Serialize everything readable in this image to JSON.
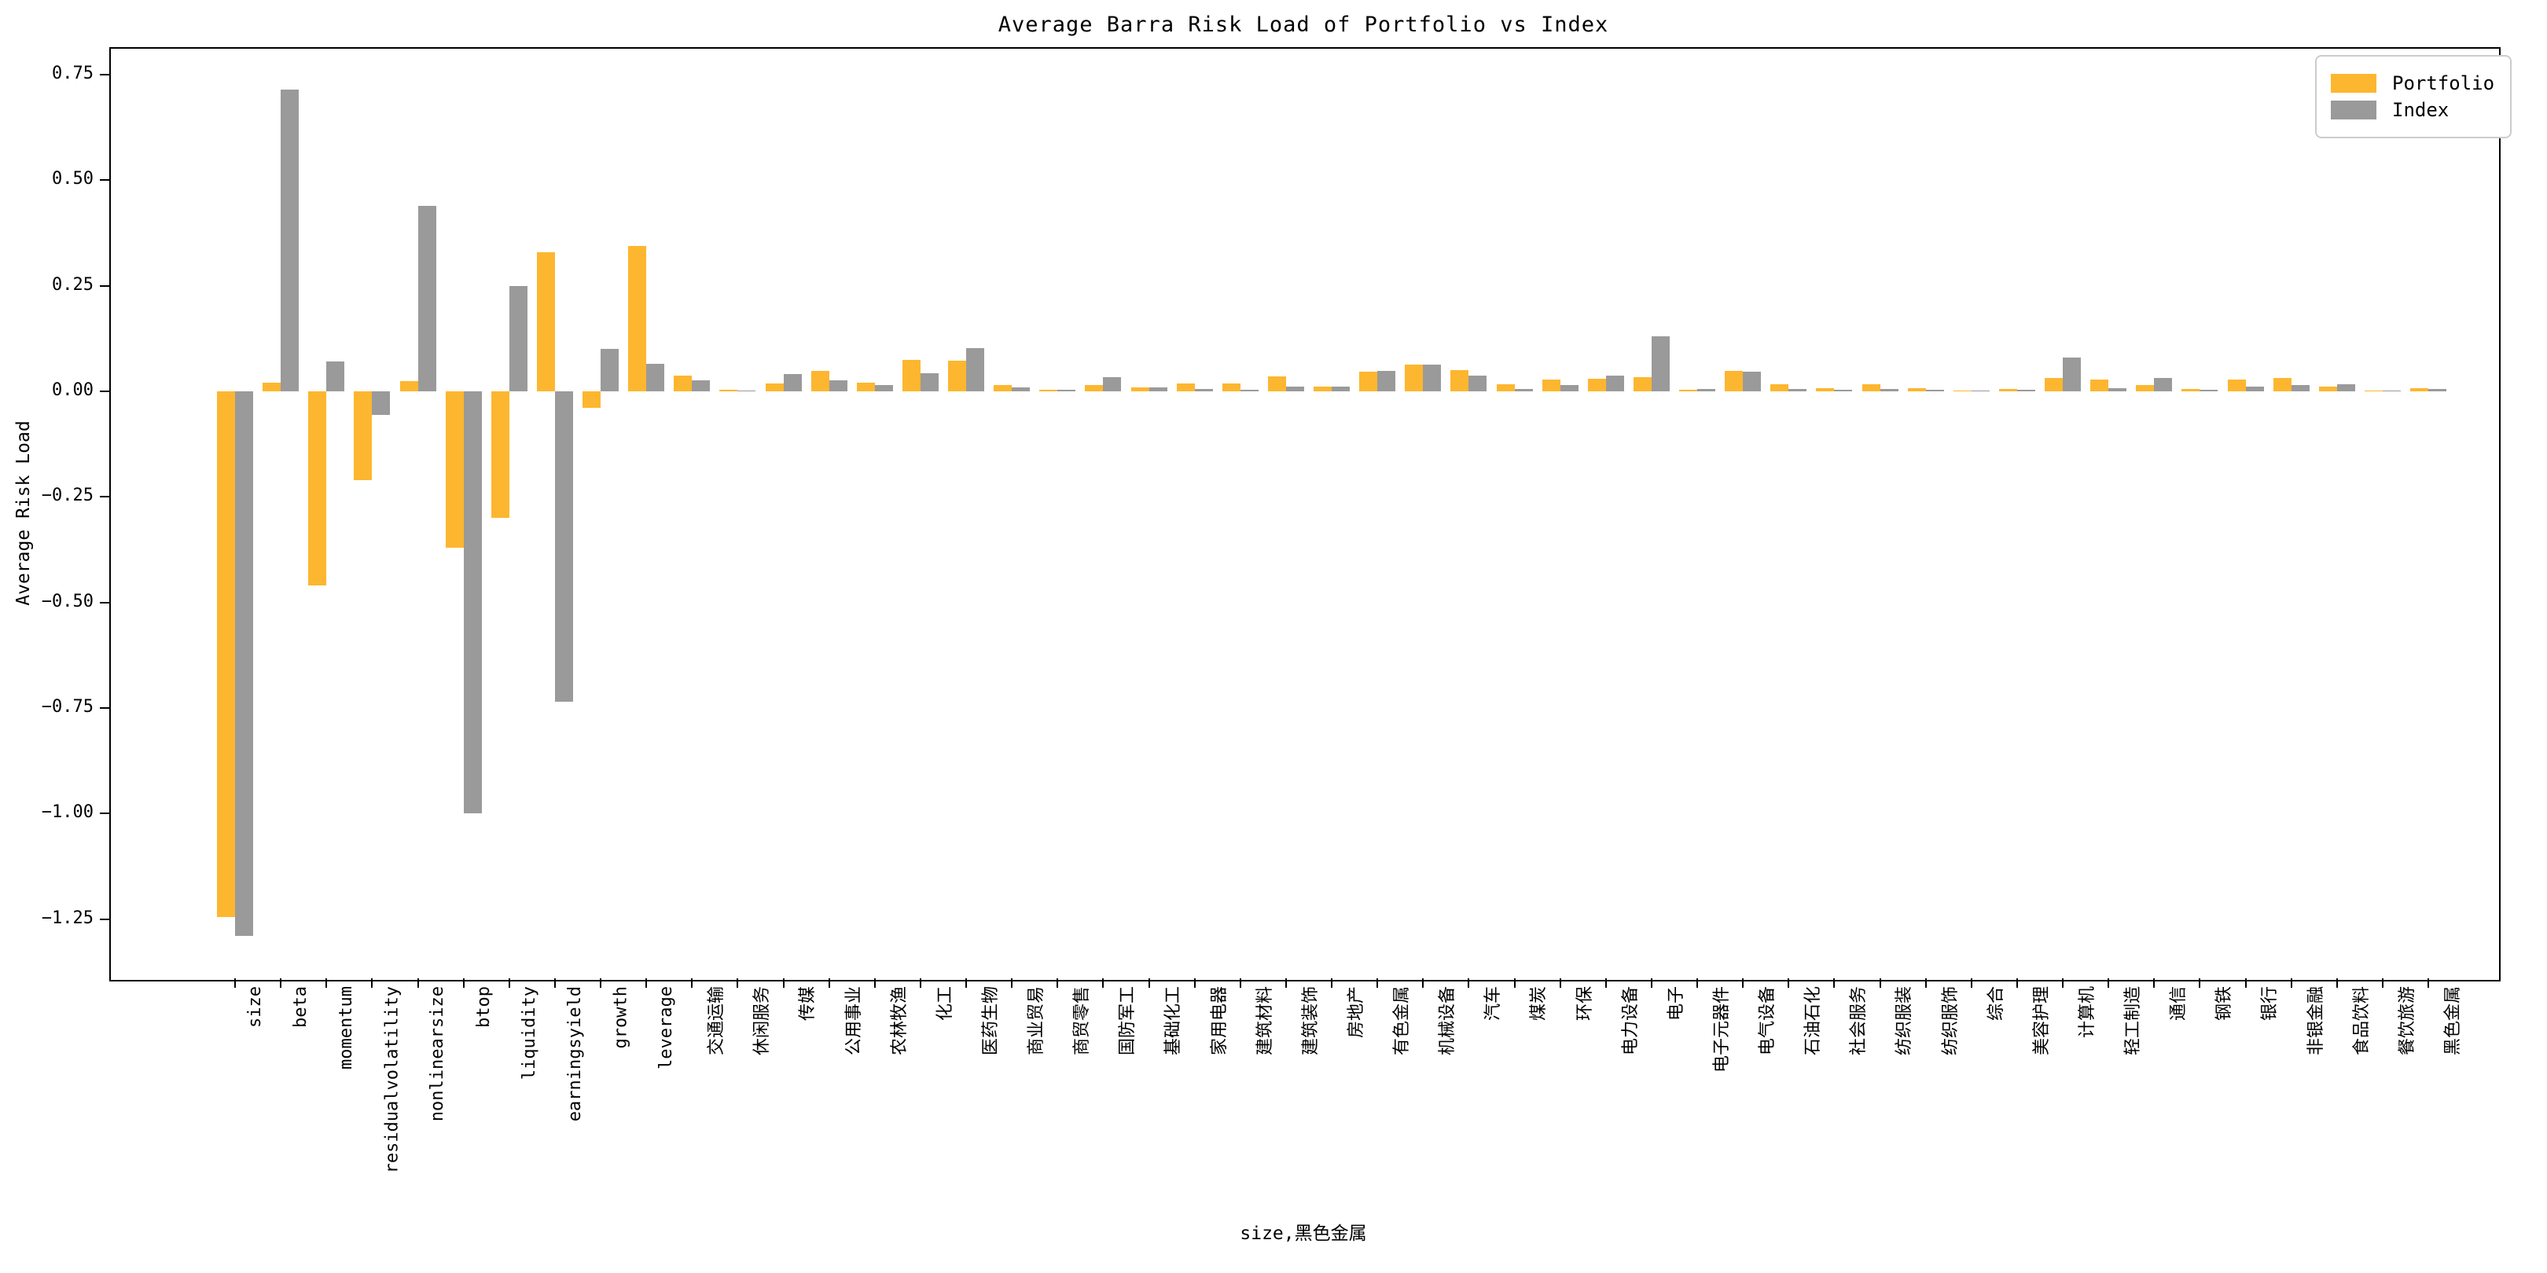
{
  "figure": {
    "title": "Average Barra Risk Load of Portfolio vs Index",
    "ylabel": "Average Risk Load",
    "xlabel": "size,黑色金属",
    "colors": {
      "portfolio": "#FDB62F",
      "index": "#9A9A9A",
      "spine": "#000000",
      "background": "#FFFFFF",
      "legend_border": "#CCCCCC"
    }
  },
  "legend": {
    "position": "upper right",
    "entries": [
      {
        "label": "Portfolio",
        "color": "#FDB62F"
      },
      {
        "label": "Index",
        "color": "#9A9A9A"
      }
    ]
  },
  "chart_data": {
    "type": "bar",
    "title": "Average Barra Risk Load of Portfolio vs Index",
    "xlabel": "size,黑色金属",
    "ylabel": "Average Risk Load",
    "ylim": [
      -1.39,
      0.815
    ],
    "yticks": [
      0.75,
      0.5,
      0.25,
      0.0,
      -0.25,
      -0.5,
      -0.75,
      -1.0,
      -1.25
    ],
    "grid": false,
    "legend_position": "upper right",
    "categories": [
      "size",
      "beta",
      "momentum",
      "residualvolatility",
      "nonlinearsize",
      "btop",
      "liquidity",
      "earningsyield",
      "growth",
      "leverage",
      "交通运输",
      "休闲服务",
      "传媒",
      "公用事业",
      "农林牧渔",
      "化工",
      "医药生物",
      "商业贸易",
      "商贸零售",
      "国防军工",
      "基础化工",
      "家用电器",
      "建筑材料",
      "建筑装饰",
      "房地产",
      "有色金属",
      "机械设备",
      "汽车",
      "煤炭",
      "环保",
      "电力设备",
      "电子",
      "电子元器件",
      "电气设备",
      "石油石化",
      "社会服务",
      "纺织服装",
      "纺织服饰",
      "综合",
      "美容护理",
      "计算机",
      "轻工制造",
      "通信",
      "钢铁",
      "银行",
      "非银金融",
      "食品饮料",
      "餐饮旅游",
      "黑色金属"
    ],
    "series": [
      {
        "name": "Portfolio",
        "color": "#FDB62F",
        "values": [
          -1.245,
          0.02,
          -0.46,
          -0.21,
          0.025,
          -0.37,
          -0.3,
          0.33,
          -0.04,
          0.345,
          0.037,
          0.003,
          0.018,
          0.048,
          0.021,
          0.074,
          0.073,
          0.014,
          0.003,
          0.014,
          0.01,
          0.019,
          0.018,
          0.036,
          0.011,
          0.047,
          0.064,
          0.05,
          0.016,
          0.028,
          0.03,
          0.033,
          0.003,
          0.048,
          0.017,
          0.007,
          0.017,
          0.008,
          0.002,
          0.006,
          0.031,
          0.028,
          0.015,
          0.005,
          0.027,
          0.032,
          0.011,
          0.001,
          0.007
        ]
      },
      {
        "name": "Index",
        "color": "#9A9A9A",
        "values": [
          -1.29,
          0.715,
          0.07,
          -0.055,
          0.44,
          -1.0,
          0.25,
          -0.735,
          0.1,
          0.066,
          0.026,
          0.001,
          0.041,
          0.026,
          0.014,
          0.042,
          0.102,
          0.01,
          0.003,
          0.034,
          0.01,
          0.006,
          0.004,
          0.012,
          0.011,
          0.048,
          0.063,
          0.038,
          0.005,
          0.015,
          0.038,
          0.13,
          0.006,
          0.047,
          0.005,
          0.003,
          0.005,
          0.003,
          0.002,
          0.004,
          0.08,
          0.007,
          0.032,
          0.004,
          0.011,
          0.014,
          0.017,
          0.002,
          0.005
        ]
      }
    ]
  }
}
